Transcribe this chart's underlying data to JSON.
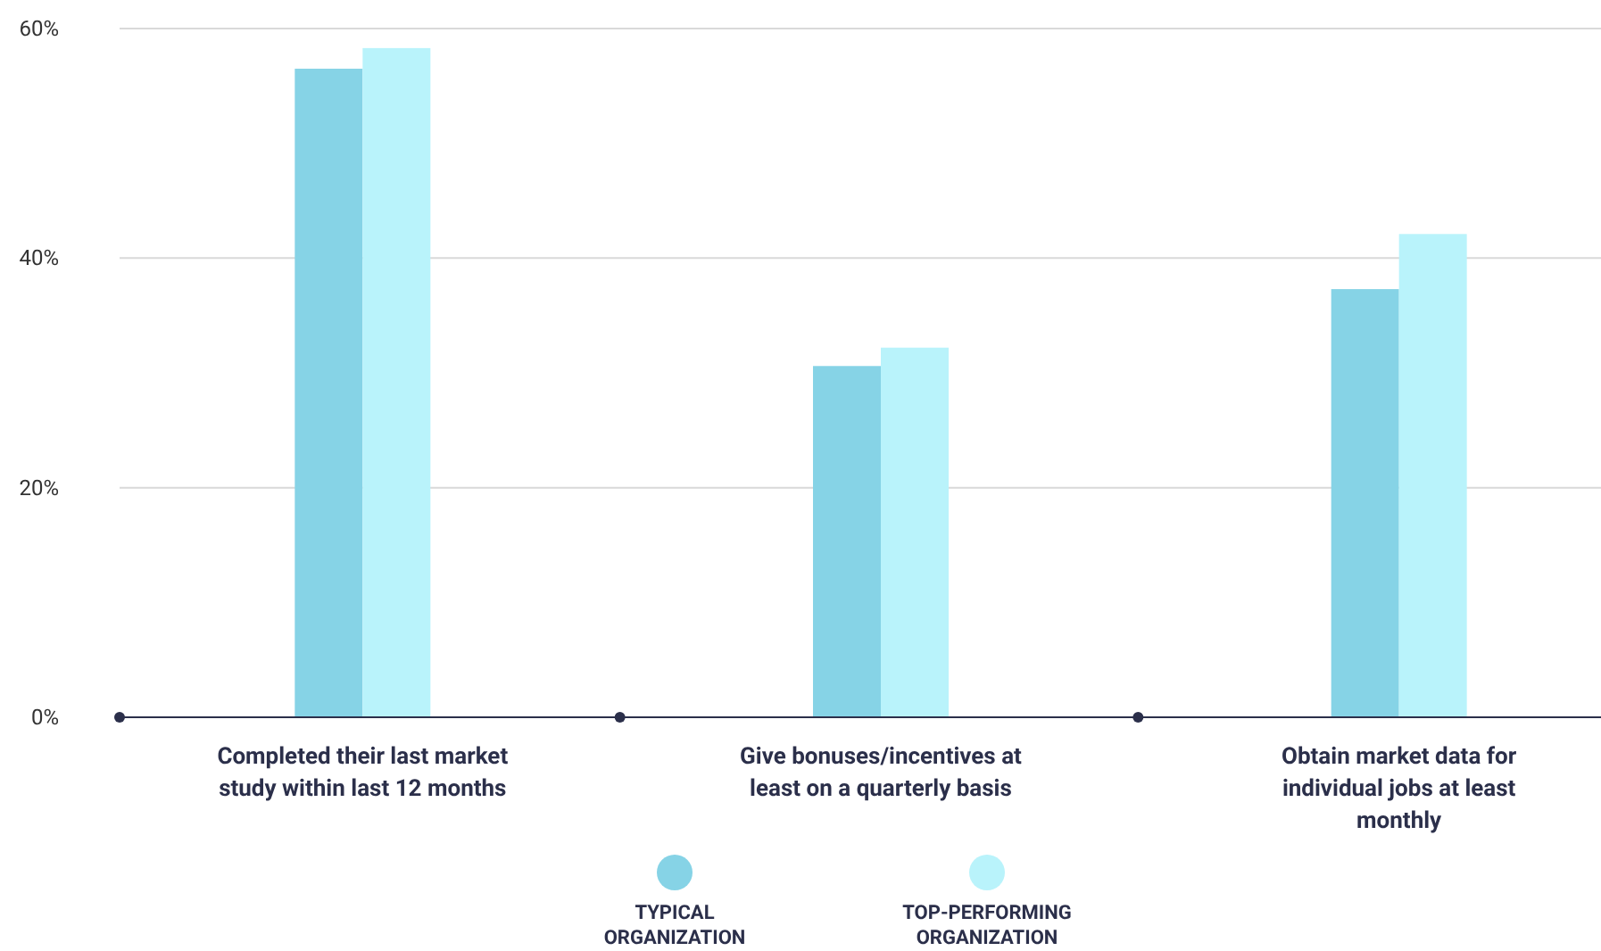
{
  "chart_data": {
    "type": "bar",
    "categories": [
      "Completed their last market study within last 12 months",
      "Give bonuses/incentives at least on a quarterly basis",
      "Obtain market data for individual jobs at least monthly"
    ],
    "series": [
      {
        "name": "TYPICAL ORGANIZATION",
        "color": "#86d3e6",
        "values": [
          56.5,
          30.6,
          37.3
        ]
      },
      {
        "name": "TOP-PERFORMING ORGANIZATION",
        "color": "#b9f3fb",
        "values": [
          58.3,
          32.2,
          42.1
        ]
      }
    ],
    "ylim": [
      0,
      60
    ],
    "yticks": [
      {
        "value": 0,
        "label": "0%"
      },
      {
        "value": 20,
        "label": "20%"
      },
      {
        "value": 40,
        "label": "40%"
      },
      {
        "value": 60,
        "label": "60%"
      }
    ],
    "grid": "y",
    "legend": "bottom"
  }
}
